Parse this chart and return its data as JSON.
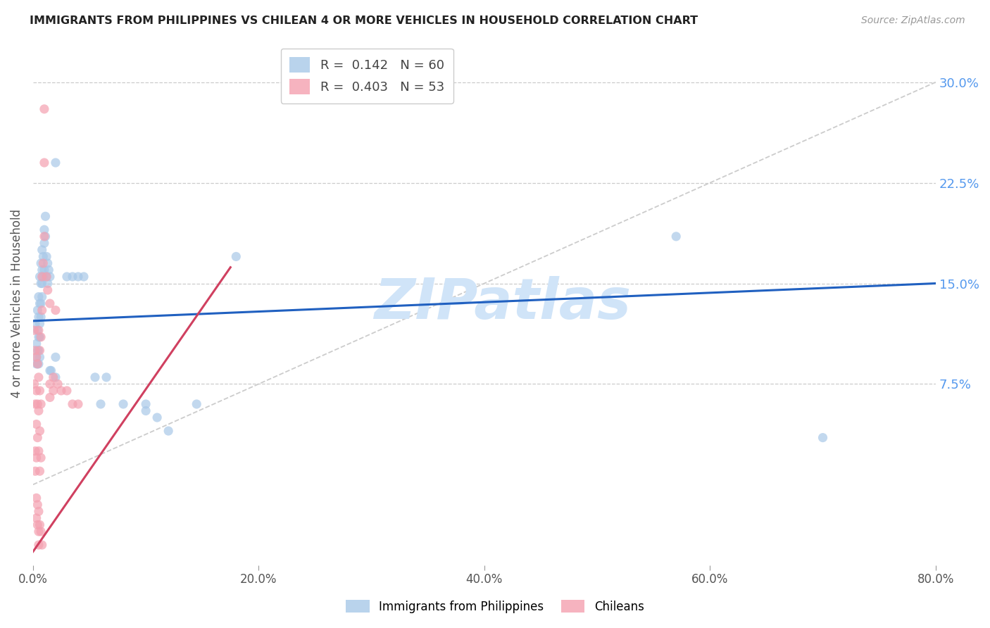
{
  "title": "IMMIGRANTS FROM PHILIPPINES VS CHILEAN 4 OR MORE VEHICLES IN HOUSEHOLD CORRELATION CHART",
  "source": "Source: ZipAtlas.com",
  "xlabel_ticks": [
    "0.0%",
    "20.0%",
    "40.0%",
    "60.0%",
    "80.0%"
  ],
  "xlabel_tick_vals": [
    0.0,
    0.2,
    0.4,
    0.6,
    0.8
  ],
  "ylabel": "4 or more Vehicles in Household",
  "ylabel_ticks": [
    "7.5%",
    "15.0%",
    "22.5%",
    "30.0%"
  ],
  "ylabel_tick_vals": [
    0.075,
    0.15,
    0.225,
    0.3
  ],
  "xlim": [
    0.0,
    0.8
  ],
  "ylim": [
    -0.06,
    0.33
  ],
  "legend_blue_r": "R =  0.142",
  "legend_blue_n": "N = 60",
  "legend_pink_r": "R =  0.403",
  "legend_pink_n": "N = 53",
  "blue_color": "#a8c8e8",
  "pink_color": "#f4a0b0",
  "trendline_blue_color": "#2060c0",
  "trendline_pink_color": "#d04060",
  "watermark_text": "ZIPatlas",
  "watermark_color": "#d0e4f8",
  "diag_line_color": "#cccccc",
  "background_color": "#ffffff",
  "blue_scatter": [
    [
      0.002,
      0.12
    ],
    [
      0.003,
      0.105
    ],
    [
      0.003,
      0.095
    ],
    [
      0.003,
      0.09
    ],
    [
      0.004,
      0.13
    ],
    [
      0.004,
      0.115
    ],
    [
      0.004,
      0.1
    ],
    [
      0.004,
      0.09
    ],
    [
      0.005,
      0.14
    ],
    [
      0.005,
      0.125
    ],
    [
      0.005,
      0.11
    ],
    [
      0.005,
      0.1
    ],
    [
      0.005,
      0.09
    ],
    [
      0.006,
      0.155
    ],
    [
      0.006,
      0.135
    ],
    [
      0.006,
      0.12
    ],
    [
      0.006,
      0.11
    ],
    [
      0.006,
      0.095
    ],
    [
      0.007,
      0.165
    ],
    [
      0.007,
      0.15
    ],
    [
      0.007,
      0.135
    ],
    [
      0.007,
      0.125
    ],
    [
      0.008,
      0.175
    ],
    [
      0.008,
      0.16
    ],
    [
      0.008,
      0.15
    ],
    [
      0.008,
      0.14
    ],
    [
      0.009,
      0.17
    ],
    [
      0.009,
      0.155
    ],
    [
      0.01,
      0.19
    ],
    [
      0.01,
      0.18
    ],
    [
      0.01,
      0.16
    ],
    [
      0.011,
      0.2
    ],
    [
      0.011,
      0.185
    ],
    [
      0.012,
      0.17
    ],
    [
      0.012,
      0.155
    ],
    [
      0.013,
      0.165
    ],
    [
      0.013,
      0.15
    ],
    [
      0.014,
      0.16
    ],
    [
      0.015,
      0.155
    ],
    [
      0.015,
      0.085
    ],
    [
      0.016,
      0.085
    ],
    [
      0.02,
      0.24
    ],
    [
      0.02,
      0.095
    ],
    [
      0.02,
      0.08
    ],
    [
      0.03,
      0.155
    ],
    [
      0.035,
      0.155
    ],
    [
      0.04,
      0.155
    ],
    [
      0.045,
      0.155
    ],
    [
      0.055,
      0.08
    ],
    [
      0.06,
      0.06
    ],
    [
      0.065,
      0.08
    ],
    [
      0.08,
      0.06
    ],
    [
      0.1,
      0.06
    ],
    [
      0.1,
      0.055
    ],
    [
      0.11,
      0.05
    ],
    [
      0.12,
      0.04
    ],
    [
      0.145,
      0.06
    ],
    [
      0.18,
      0.17
    ],
    [
      0.57,
      0.185
    ],
    [
      0.7,
      0.035
    ]
  ],
  "pink_scatter": [
    [
      0.001,
      0.115
    ],
    [
      0.001,
      0.075
    ],
    [
      0.002,
      0.1
    ],
    [
      0.002,
      0.06
    ],
    [
      0.002,
      0.025
    ],
    [
      0.002,
      0.01
    ],
    [
      0.003,
      0.095
    ],
    [
      0.003,
      0.07
    ],
    [
      0.003,
      0.045
    ],
    [
      0.003,
      0.02
    ],
    [
      0.003,
      -0.01
    ],
    [
      0.003,
      -0.025
    ],
    [
      0.004,
      0.09
    ],
    [
      0.004,
      0.06
    ],
    [
      0.004,
      0.035
    ],
    [
      0.004,
      -0.015
    ],
    [
      0.004,
      -0.03
    ],
    [
      0.005,
      0.115
    ],
    [
      0.005,
      0.08
    ],
    [
      0.005,
      0.055
    ],
    [
      0.005,
      0.025
    ],
    [
      0.005,
      -0.02
    ],
    [
      0.005,
      -0.035
    ],
    [
      0.005,
      -0.045
    ],
    [
      0.006,
      0.1
    ],
    [
      0.006,
      0.07
    ],
    [
      0.006,
      0.04
    ],
    [
      0.006,
      0.01
    ],
    [
      0.006,
      -0.03
    ],
    [
      0.007,
      0.11
    ],
    [
      0.007,
      0.06
    ],
    [
      0.007,
      0.02
    ],
    [
      0.007,
      -0.035
    ],
    [
      0.008,
      0.155
    ],
    [
      0.008,
      0.13
    ],
    [
      0.008,
      -0.045
    ],
    [
      0.009,
      0.165
    ],
    [
      0.01,
      0.28
    ],
    [
      0.01,
      0.24
    ],
    [
      0.01,
      0.185
    ],
    [
      0.012,
      0.155
    ],
    [
      0.013,
      0.145
    ],
    [
      0.015,
      0.135
    ],
    [
      0.015,
      0.075
    ],
    [
      0.015,
      0.065
    ],
    [
      0.018,
      0.08
    ],
    [
      0.018,
      0.07
    ],
    [
      0.02,
      0.13
    ],
    [
      0.022,
      0.075
    ],
    [
      0.025,
      0.07
    ],
    [
      0.03,
      0.07
    ],
    [
      0.035,
      0.06
    ],
    [
      0.04,
      0.06
    ]
  ],
  "blue_trendline": [
    [
      0.0,
      0.122
    ],
    [
      0.8,
      0.15
    ]
  ],
  "pink_trendline": [
    [
      0.0,
      -0.05
    ],
    [
      0.175,
      0.162
    ]
  ]
}
